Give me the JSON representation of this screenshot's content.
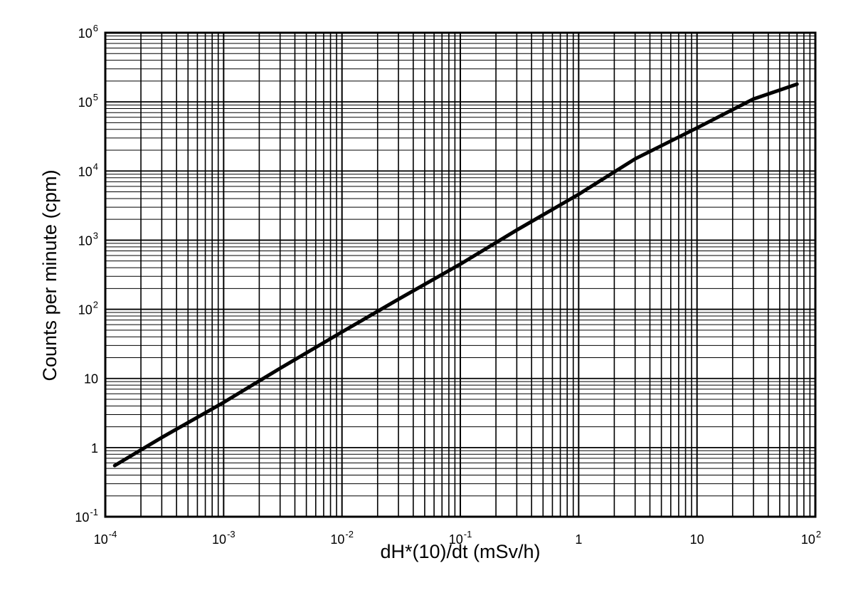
{
  "chart_data": {
    "type": "line",
    "xlabel": "dH*(10)/dt (mSv/h)",
    "ylabel": "Counts per minute (cpm)",
    "x_scale": "log",
    "y_scale": "log",
    "xlim": [
      0.0001,
      100
    ],
    "ylim": [
      0.1,
      1000000
    ],
    "grid": true,
    "x_ticks": [
      {
        "value": 0.0001,
        "base": "10",
        "exp": "-4"
      },
      {
        "value": 0.001,
        "base": "10",
        "exp": "-3"
      },
      {
        "value": 0.01,
        "base": "10",
        "exp": "-2"
      },
      {
        "value": 0.1,
        "base": "10",
        "exp": "-1"
      },
      {
        "value": 1,
        "base": "1",
        "exp": ""
      },
      {
        "value": 10,
        "base": "10",
        "exp": ""
      },
      {
        "value": 100,
        "base": "10",
        "exp": "2"
      }
    ],
    "y_ticks": [
      {
        "value": 0.1,
        "base": "10",
        "exp": "-1"
      },
      {
        "value": 1,
        "base": "1",
        "exp": ""
      },
      {
        "value": 10,
        "base": "10",
        "exp": ""
      },
      {
        "value": 100,
        "base": "10",
        "exp": "2"
      },
      {
        "value": 1000,
        "base": "10",
        "exp": "3"
      },
      {
        "value": 10000,
        "base": "10",
        "exp": "4"
      },
      {
        "value": 100000,
        "base": "10",
        "exp": "5"
      },
      {
        "value": 1000000,
        "base": "10",
        "exp": "6"
      }
    ],
    "series": [
      {
        "x": [
          0.00012,
          0.0003,
          0.001,
          0.003,
          0.01,
          0.03,
          0.1,
          0.3,
          1,
          3,
          10,
          15,
          30,
          70
        ],
        "y": [
          0.55,
          1.4,
          4.5,
          14,
          47,
          140,
          450,
          1400,
          4600,
          15000,
          42000,
          60000,
          110000,
          180000
        ]
      }
    ]
  }
}
